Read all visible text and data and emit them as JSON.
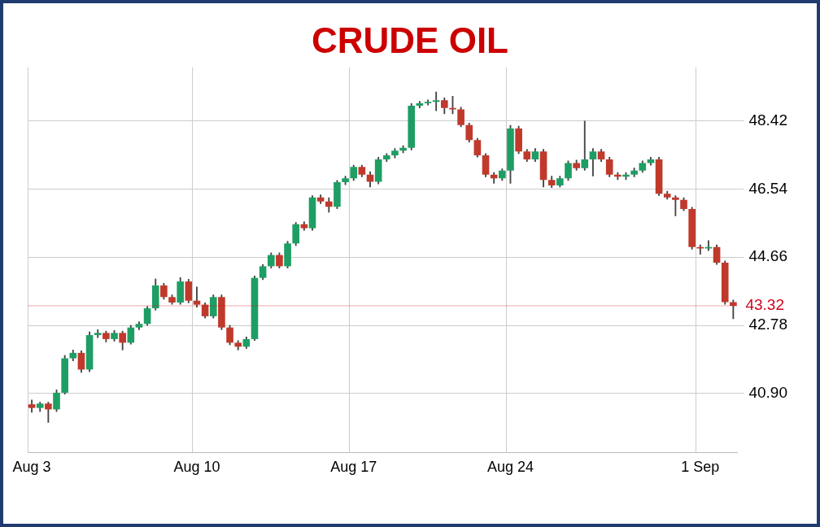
{
  "chart_data": {
    "type": "candlestick",
    "title": "CRUDE OIL",
    "categories": [
      "Aug 3",
      null,
      null,
      null,
      null,
      null,
      null,
      null,
      null,
      null,
      null,
      null,
      null,
      null,
      null,
      null,
      null,
      null,
      null,
      null,
      "Aug 10",
      null,
      null,
      null,
      null,
      null,
      null,
      null,
      null,
      null,
      null,
      null,
      null,
      null,
      null,
      null,
      null,
      null,
      null,
      "Aug 17",
      null,
      null,
      null,
      null,
      null,
      null,
      null,
      null,
      null,
      null,
      null,
      null,
      null,
      null,
      null,
      null,
      null,
      null,
      "Aug 24",
      null,
      null,
      null,
      null,
      null,
      null,
      null,
      null,
      null,
      null,
      null,
      null,
      null,
      null,
      null,
      null,
      null,
      null,
      null,
      null,
      null,
      null,
      "1 Sep",
      null,
      null,
      null,
      null
    ],
    "ohlc": [
      [
        40.6,
        40.72,
        40.38,
        40.5
      ],
      [
        40.5,
        40.66,
        40.4,
        40.62
      ],
      [
        40.62,
        40.66,
        40.1,
        40.46
      ],
      [
        40.46,
        41.0,
        40.4,
        40.92
      ],
      [
        40.92,
        41.95,
        40.88,
        41.87
      ],
      [
        41.87,
        42.1,
        41.8,
        42.02
      ],
      [
        42.02,
        42.08,
        41.48,
        41.56
      ],
      [
        41.56,
        42.6,
        41.5,
        42.51
      ],
      [
        42.51,
        42.66,
        42.44,
        42.57
      ],
      [
        42.57,
        42.62,
        42.32,
        42.4
      ],
      [
        42.4,
        42.64,
        42.34,
        42.57
      ],
      [
        42.57,
        42.62,
        42.1,
        42.3
      ],
      [
        42.3,
        42.78,
        42.26,
        42.72
      ],
      [
        42.72,
        42.88,
        42.66,
        42.82
      ],
      [
        42.82,
        43.3,
        42.78,
        43.25
      ],
      [
        43.25,
        44.06,
        43.2,
        43.88
      ],
      [
        43.88,
        43.94,
        43.5,
        43.56
      ],
      [
        43.56,
        43.62,
        43.36,
        43.41
      ],
      [
        43.41,
        44.1,
        43.36,
        43.99
      ],
      [
        43.99,
        44.05,
        43.4,
        43.46
      ],
      [
        43.46,
        43.84,
        43.28,
        43.35
      ],
      [
        43.35,
        43.4,
        42.98,
        43.03
      ],
      [
        43.03,
        43.62,
        42.98,
        43.56
      ],
      [
        43.56,
        43.62,
        42.66,
        42.72
      ],
      [
        42.72,
        42.78,
        42.24,
        42.3
      ],
      [
        42.3,
        42.36,
        42.1,
        42.19
      ],
      [
        42.19,
        42.46,
        42.14,
        42.4
      ],
      [
        42.4,
        44.14,
        42.36,
        44.09
      ],
      [
        44.09,
        44.46,
        44.04,
        44.41
      ],
      [
        44.41,
        44.78,
        44.36,
        44.72
      ],
      [
        44.72,
        44.78,
        44.36,
        44.41
      ],
      [
        44.41,
        45.1,
        44.36,
        45.04
      ],
      [
        45.04,
        45.62,
        44.98,
        45.57
      ],
      [
        45.57,
        45.64,
        45.4,
        45.46
      ],
      [
        45.46,
        46.36,
        45.4,
        46.31
      ],
      [
        46.31,
        46.38,
        46.14,
        46.2
      ],
      [
        46.2,
        46.3,
        45.9,
        46.05
      ],
      [
        46.05,
        46.78,
        46.0,
        46.73
      ],
      [
        46.73,
        46.9,
        46.66,
        46.84
      ],
      [
        46.84,
        47.2,
        46.78,
        47.15
      ],
      [
        47.15,
        47.2,
        46.88,
        46.94
      ],
      [
        46.94,
        47.02,
        46.6,
        46.74
      ],
      [
        46.74,
        47.42,
        46.68,
        47.36
      ],
      [
        47.36,
        47.52,
        47.3,
        47.47
      ],
      [
        47.47,
        47.66,
        47.4,
        47.6
      ],
      [
        47.6,
        47.74,
        47.54,
        47.68
      ],
      [
        47.68,
        48.9,
        47.62,
        48.84
      ],
      [
        48.84,
        48.96,
        48.78,
        48.91
      ],
      [
        48.91,
        49.0,
        48.86,
        48.95
      ],
      [
        48.95,
        49.22,
        48.7,
        48.99
      ],
      [
        48.99,
        49.06,
        48.62,
        48.78
      ],
      [
        48.78,
        49.1,
        48.62,
        48.74
      ],
      [
        48.74,
        48.8,
        48.26,
        48.31
      ],
      [
        48.31,
        48.36,
        47.84,
        47.89
      ],
      [
        47.89,
        47.94,
        47.42,
        47.47
      ],
      [
        47.47,
        47.52,
        46.88,
        46.94
      ],
      [
        46.94,
        47.0,
        46.7,
        46.84
      ],
      [
        46.84,
        47.1,
        46.78,
        47.05
      ],
      [
        47.05,
        48.3,
        46.7,
        48.21
      ],
      [
        48.21,
        48.28,
        47.52,
        47.58
      ],
      [
        47.58,
        47.64,
        47.3,
        47.36
      ],
      [
        47.36,
        47.66,
        47.3,
        47.58
      ],
      [
        47.58,
        47.64,
        46.6,
        46.79
      ],
      [
        46.79,
        46.9,
        46.58,
        46.64
      ],
      [
        46.64,
        46.9,
        46.6,
        46.84
      ],
      [
        46.84,
        47.32,
        46.78,
        47.26
      ],
      [
        47.26,
        47.34,
        47.06,
        47.12
      ],
      [
        47.12,
        48.42,
        47.06,
        47.36
      ],
      [
        47.36,
        47.66,
        46.9,
        47.58
      ],
      [
        47.58,
        47.64,
        47.3,
        47.36
      ],
      [
        47.36,
        47.42,
        46.88,
        46.94
      ],
      [
        46.94,
        47.0,
        46.8,
        46.88
      ],
      [
        46.88,
        47.0,
        46.8,
        46.94
      ],
      [
        46.94,
        47.12,
        46.88,
        47.05
      ],
      [
        47.05,
        47.32,
        47.0,
        47.26
      ],
      [
        47.26,
        47.42,
        47.2,
        47.36
      ],
      [
        47.36,
        47.42,
        46.36,
        46.41
      ],
      [
        46.41,
        46.48,
        46.26,
        46.31
      ],
      [
        46.31,
        46.36,
        45.8,
        46.24
      ],
      [
        46.24,
        46.3,
        45.94,
        45.99
      ],
      [
        45.99,
        46.04,
        44.88,
        44.94
      ],
      [
        44.94,
        45.0,
        44.74,
        44.9
      ],
      [
        44.9,
        45.12,
        44.84,
        44.94
      ],
      [
        44.94,
        45.0,
        44.46,
        44.51
      ],
      [
        44.51,
        44.56,
        43.36,
        43.42
      ],
      [
        43.42,
        43.48,
        42.96,
        43.32
      ]
    ],
    "colors": [
      "#c0392b",
      "#1e9e64",
      "#c0392b",
      "#1e9e64",
      "#1e9e64",
      "#1e9e64",
      "#c0392b",
      "#1e9e64",
      "#1e9e64",
      "#c0392b",
      "#1e9e64",
      "#c0392b",
      "#1e9e64",
      "#1e9e64",
      "#1e9e64",
      "#1e9e64",
      "#c0392b",
      "#c0392b",
      "#1e9e64",
      "#c0392b",
      "#c0392b",
      "#c0392b",
      "#1e9e64",
      "#c0392b",
      "#c0392b",
      "#c0392b",
      "#1e9e64",
      "#1e9e64",
      "#1e9e64",
      "#1e9e64",
      "#c0392b",
      "#1e9e64",
      "#1e9e64",
      "#c0392b",
      "#1e9e64",
      "#c0392b",
      "#c0392b",
      "#1e9e64",
      "#1e9e64",
      "#1e9e64",
      "#c0392b",
      "#c0392b",
      "#1e9e64",
      "#1e9e64",
      "#1e9e64",
      "#1e9e64",
      "#1e9e64",
      "#1e9e64",
      "#1e9e64",
      "#1e9e64",
      "#c0392b",
      "#c0392b",
      "#c0392b",
      "#c0392b",
      "#c0392b",
      "#c0392b",
      "#c0392b",
      "#1e9e64",
      "#1e9e64",
      "#c0392b",
      "#c0392b",
      "#1e9e64",
      "#c0392b",
      "#c0392b",
      "#1e9e64",
      "#1e9e64",
      "#c0392b",
      "#1e9e64",
      "#1e9e64",
      "#c0392b",
      "#c0392b",
      "#c0392b",
      "#1e9e64",
      "#1e9e64",
      "#1e9e64",
      "#1e9e64",
      "#c0392b",
      "#c0392b",
      "#c0392b",
      "#c0392b",
      "#c0392b",
      "#c0392b",
      "#1e9e64",
      "#c0392b",
      "#c0392b",
      "#c0392b"
    ],
    "ylim": [
      39.27,
      49.9
    ],
    "yticks": [
      {
        "value": 40.9,
        "label": "40.90"
      },
      {
        "value": 42.78,
        "label": "42.78"
      },
      44.66,
      46.54,
      48.42
    ],
    "ref_lines": [
      {
        "axis": "y",
        "value": 43.32,
        "label": "43.32",
        "color": "#d0021b"
      }
    ],
    "grid": true
  }
}
